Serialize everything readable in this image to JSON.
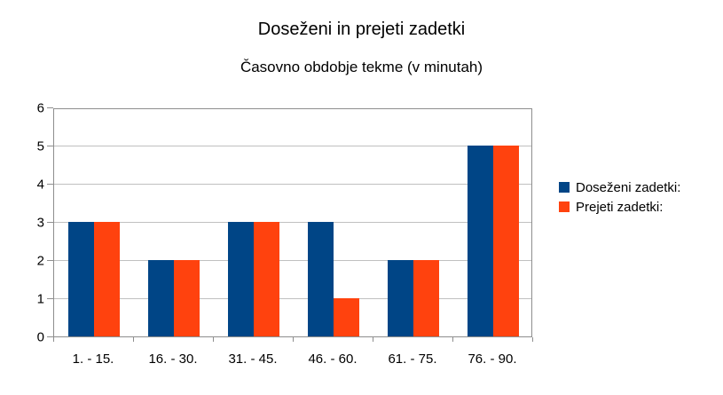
{
  "chart_data": {
    "type": "bar",
    "title": "Doseženi in prejeti zadetki",
    "subtitle": "Časovno obdobje tekme (v minutah)",
    "categories": [
      "1. - 15.",
      "16. - 30.",
      "31. - 45.",
      "46. - 60.",
      "61. - 75.",
      "76. - 90."
    ],
    "series": [
      {
        "name": "Doseženi zadetki:",
        "color": "#004586",
        "values": [
          3,
          2,
          3,
          3,
          2,
          5
        ]
      },
      {
        "name": "Prejeti zadetki:",
        "color": "#FF420E",
        "values": [
          3,
          2,
          3,
          1,
          2,
          5
        ]
      }
    ],
    "xlabel": "",
    "ylabel": "",
    "ylim": [
      0,
      6
    ],
    "yticks": [
      0,
      1,
      2,
      3,
      4,
      5,
      6
    ],
    "grid": "horizontal-on",
    "legend_position": "right",
    "colors": {
      "grid": "#c0c0c0",
      "axis": "#8e8e8e",
      "text": "#000000",
      "background": "#ffffff"
    }
  }
}
